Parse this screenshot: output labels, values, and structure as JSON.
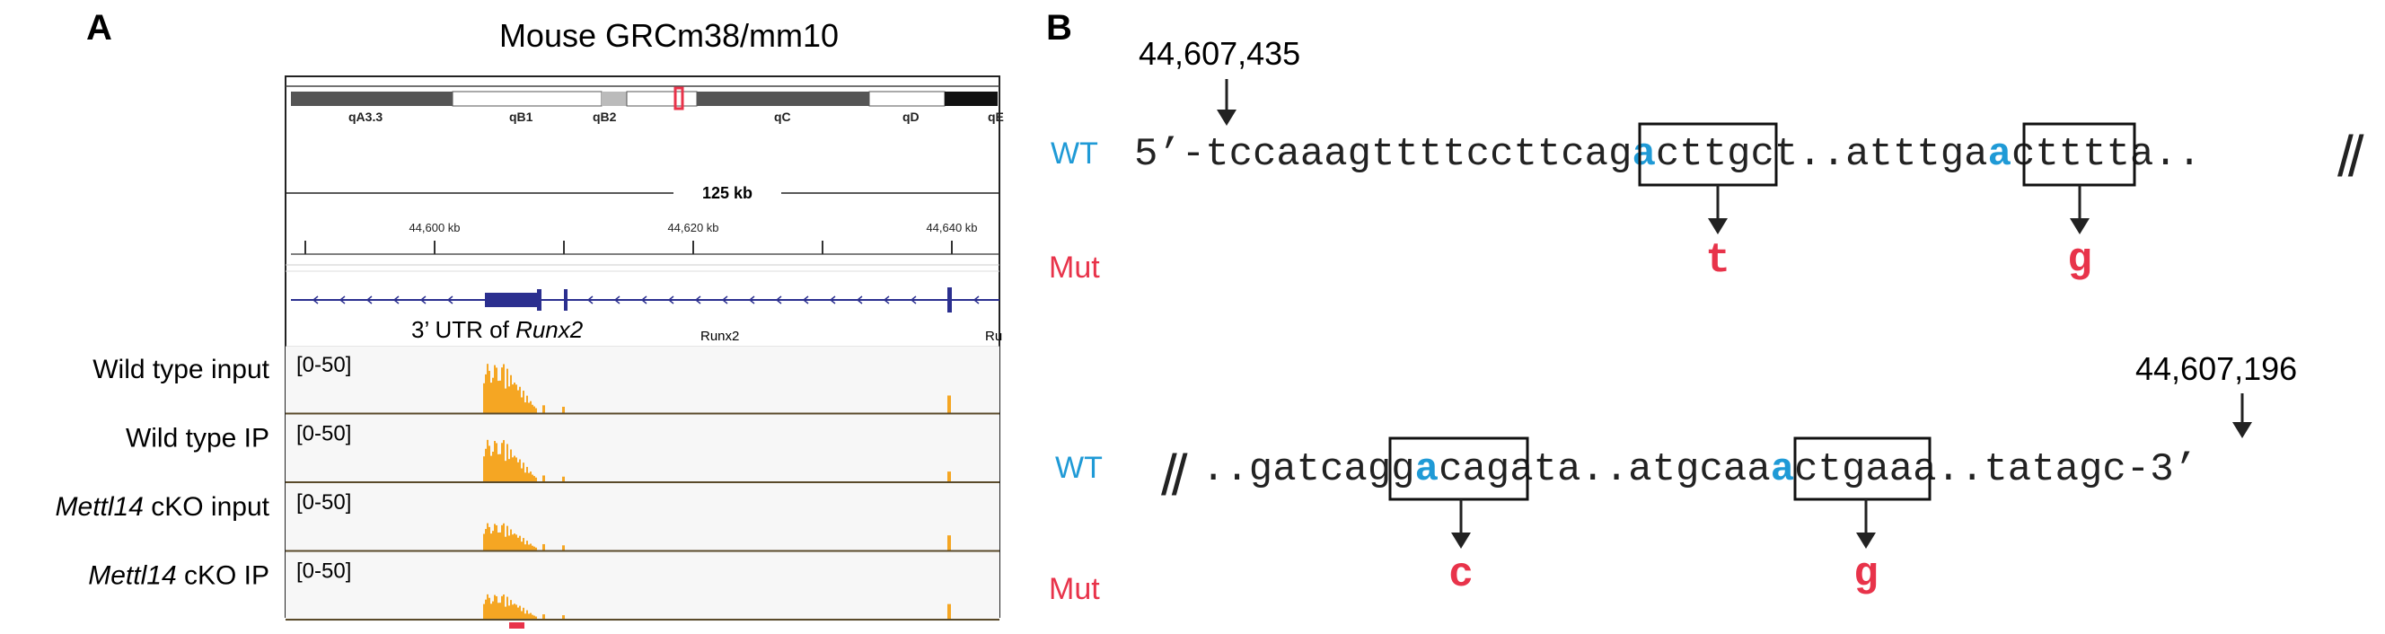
{
  "panel_a": {
    "label": "A",
    "title": "Mouse GRCm38/mm10",
    "ideogram_bands": [
      "qA3.3",
      "qB1",
      "qB2",
      "qC",
      "qD",
      "qE"
    ],
    "scale_label": "125 kb",
    "coord_ticks": [
      "44,600 kb",
      "44,620 kb",
      "44,640 kb"
    ],
    "gene_names": [
      "Runx2",
      "Ru"
    ],
    "utr_label_prefix": "3’ UTR of ",
    "utr_label_gene": "Runx2",
    "tracks": [
      {
        "label_italic": "",
        "label_plain": "Wild type input",
        "range": "[0-50]"
      },
      {
        "label_italic": "",
        "label_plain": "Wild type IP",
        "range": "[0-50]"
      },
      {
        "label_italic": "Mettl14",
        "label_plain": " cKO input",
        "range": "[0-50]"
      },
      {
        "label_italic": "Mettl14",
        "label_plain": " cKO IP",
        "range": "[0-50]"
      }
    ],
    "colors": {
      "coverage": "#f5a623",
      "gene": "#2b2f8f",
      "highlight": "#e8334a"
    }
  },
  "panel_b": {
    "label": "B",
    "start_coord": "44,607,435",
    "end_coord": "44,607,196",
    "wt_label": "WT",
    "mut_label": "Mut",
    "row1": {
      "segments": [
        "5’-tccaaagttttcctt",
        "cag",
        "a",
        "ct",
        "tgct..attt",
        "ga",
        "a",
        "ct",
        "ttta.."
      ],
      "break_mark": "//",
      "mutations": [
        "t",
        "g"
      ]
    },
    "row2": {
      "break_mark": "//",
      "segments": [
        "..gatca",
        "gg",
        "a",
        "ca",
        "gata..atgc",
        "aa",
        "a",
        "ct",
        "gaaa..tatagc-3’"
      ],
      "mutations": [
        "c",
        "g"
      ]
    },
    "colors": {
      "wt": "#1f9ad6",
      "mut": "#e8334a",
      "edited_base": "#1f9ad6"
    }
  }
}
